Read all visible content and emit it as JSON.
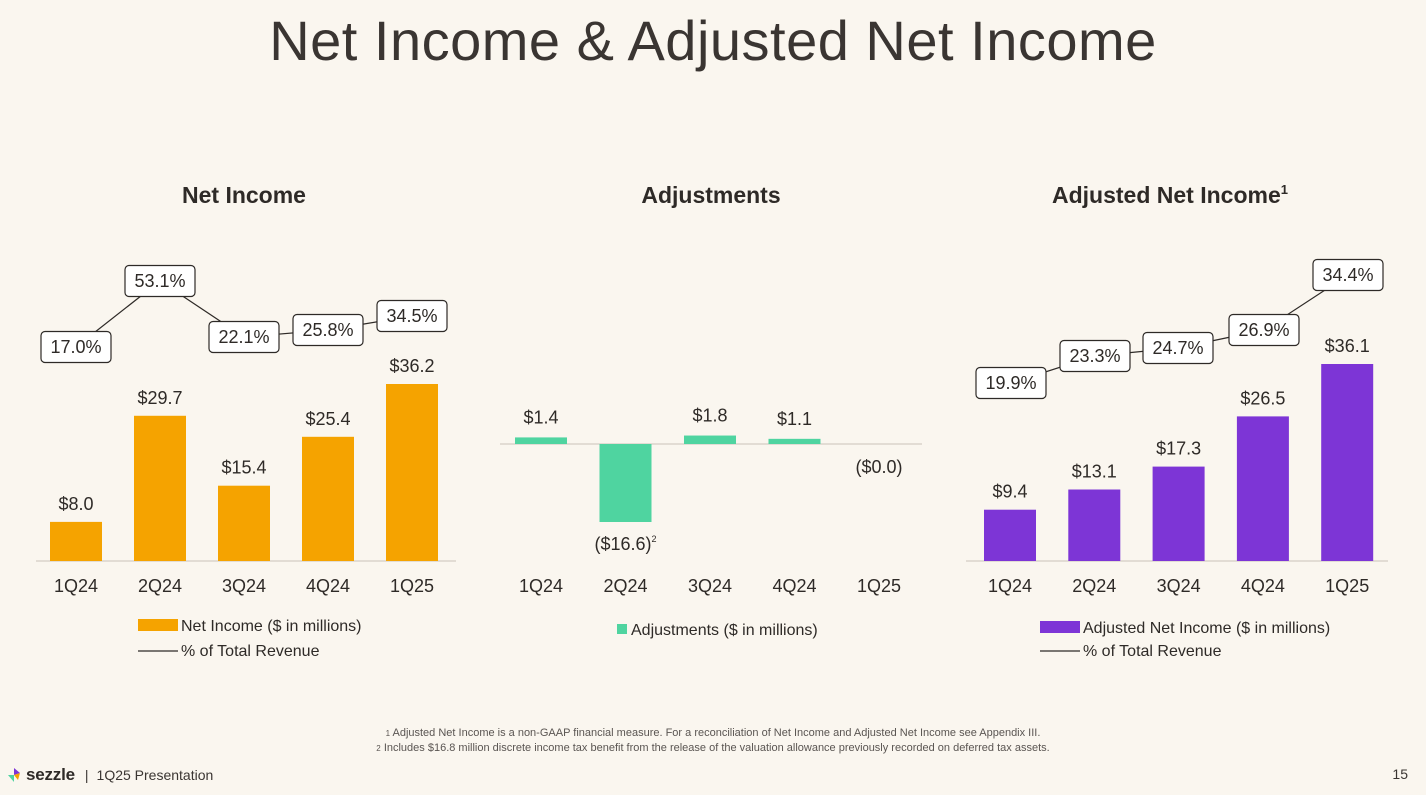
{
  "page": {
    "title": "Net Income & Adjusted Net Income",
    "footnote_1_marker": "1",
    "footnote_1": "Adjusted Net Income is a non-GAAP financial measure. For a reconciliation of Net Income and Adjusted Net Income see Appendix III.",
    "footnote_2_marker": "2",
    "footnote_2": "Includes $16.8 million discrete income tax benefit from the release of the valuation allowance previously recorded on deferred tax assets.",
    "brand": "sezzle",
    "separator": "|",
    "presentation": "1Q25 Presentation",
    "page_number": "15"
  },
  "colors": {
    "net_income": "#F5A300",
    "adjustments": "#4FD4A0",
    "adjusted_net_income": "#7D35D6",
    "text": "#2E2A27",
    "axis": "#D9D4CC"
  },
  "chart_data": [
    {
      "type": "bar",
      "title": "Net Income",
      "title_sup": "",
      "categories": [
        "1Q24",
        "2Q24",
        "3Q24",
        "4Q24",
        "1Q25"
      ],
      "series": [
        {
          "name": "Net Income ($ in millions)",
          "values": [
            8.0,
            29.7,
            15.4,
            25.4,
            36.2
          ],
          "labels": [
            "$8.0",
            "$29.7",
            "$15.4",
            "$25.4",
            "$36.2"
          ]
        }
      ],
      "line_series": {
        "name": "% of Total Revenue",
        "values": [
          17.0,
          53.1,
          22.1,
          25.8,
          34.5
        ],
        "labels": [
          "17.0%",
          "53.1%",
          "22.1%",
          "25.8%",
          "34.5%"
        ]
      },
      "ylim": [
        0,
        40
      ],
      "legend_bar": "Net Income ($ in millions)",
      "legend_line": "% of Total Revenue"
    },
    {
      "type": "bar",
      "title": "Adjustments",
      "categories": [
        "1Q24",
        "2Q24",
        "3Q24",
        "4Q24",
        "1Q25"
      ],
      "series": [
        {
          "name": "Adjustments ($ in millions)",
          "values": [
            1.4,
            -16.6,
            1.8,
            1.1,
            0.0
          ],
          "labels": [
            "$1.4",
            "($16.6)",
            "$1.8",
            "$1.1",
            "($0.0)"
          ]
        }
      ],
      "label_note": {
        "index": 1,
        "marker": "2"
      },
      "ylim": [
        -20,
        20
      ],
      "legend_bar": "Adjustments ($ in millions)"
    },
    {
      "type": "bar",
      "title": "Adjusted Net Income",
      "title_sup": "1",
      "categories": [
        "1Q24",
        "2Q24",
        "3Q24",
        "4Q24",
        "1Q25"
      ],
      "series": [
        {
          "name": "Adjusted Net Income ($ in millions)",
          "values": [
            9.4,
            13.1,
            17.3,
            26.5,
            36.1
          ],
          "labels": [
            "$9.4",
            "$13.1",
            "$17.3",
            "$26.5",
            "$36.1"
          ]
        }
      ],
      "line_series": {
        "name": "% of Total Revenue",
        "values": [
          19.9,
          23.3,
          24.7,
          26.9,
          34.4
        ],
        "labels": [
          "19.9%",
          "23.3%",
          "24.7%",
          "26.9%",
          "34.4%"
        ]
      },
      "ylim": [
        0,
        40
      ],
      "legend_bar": "Adjusted Net Income ($ in millions)",
      "legend_line": "% of Total Revenue"
    }
  ]
}
